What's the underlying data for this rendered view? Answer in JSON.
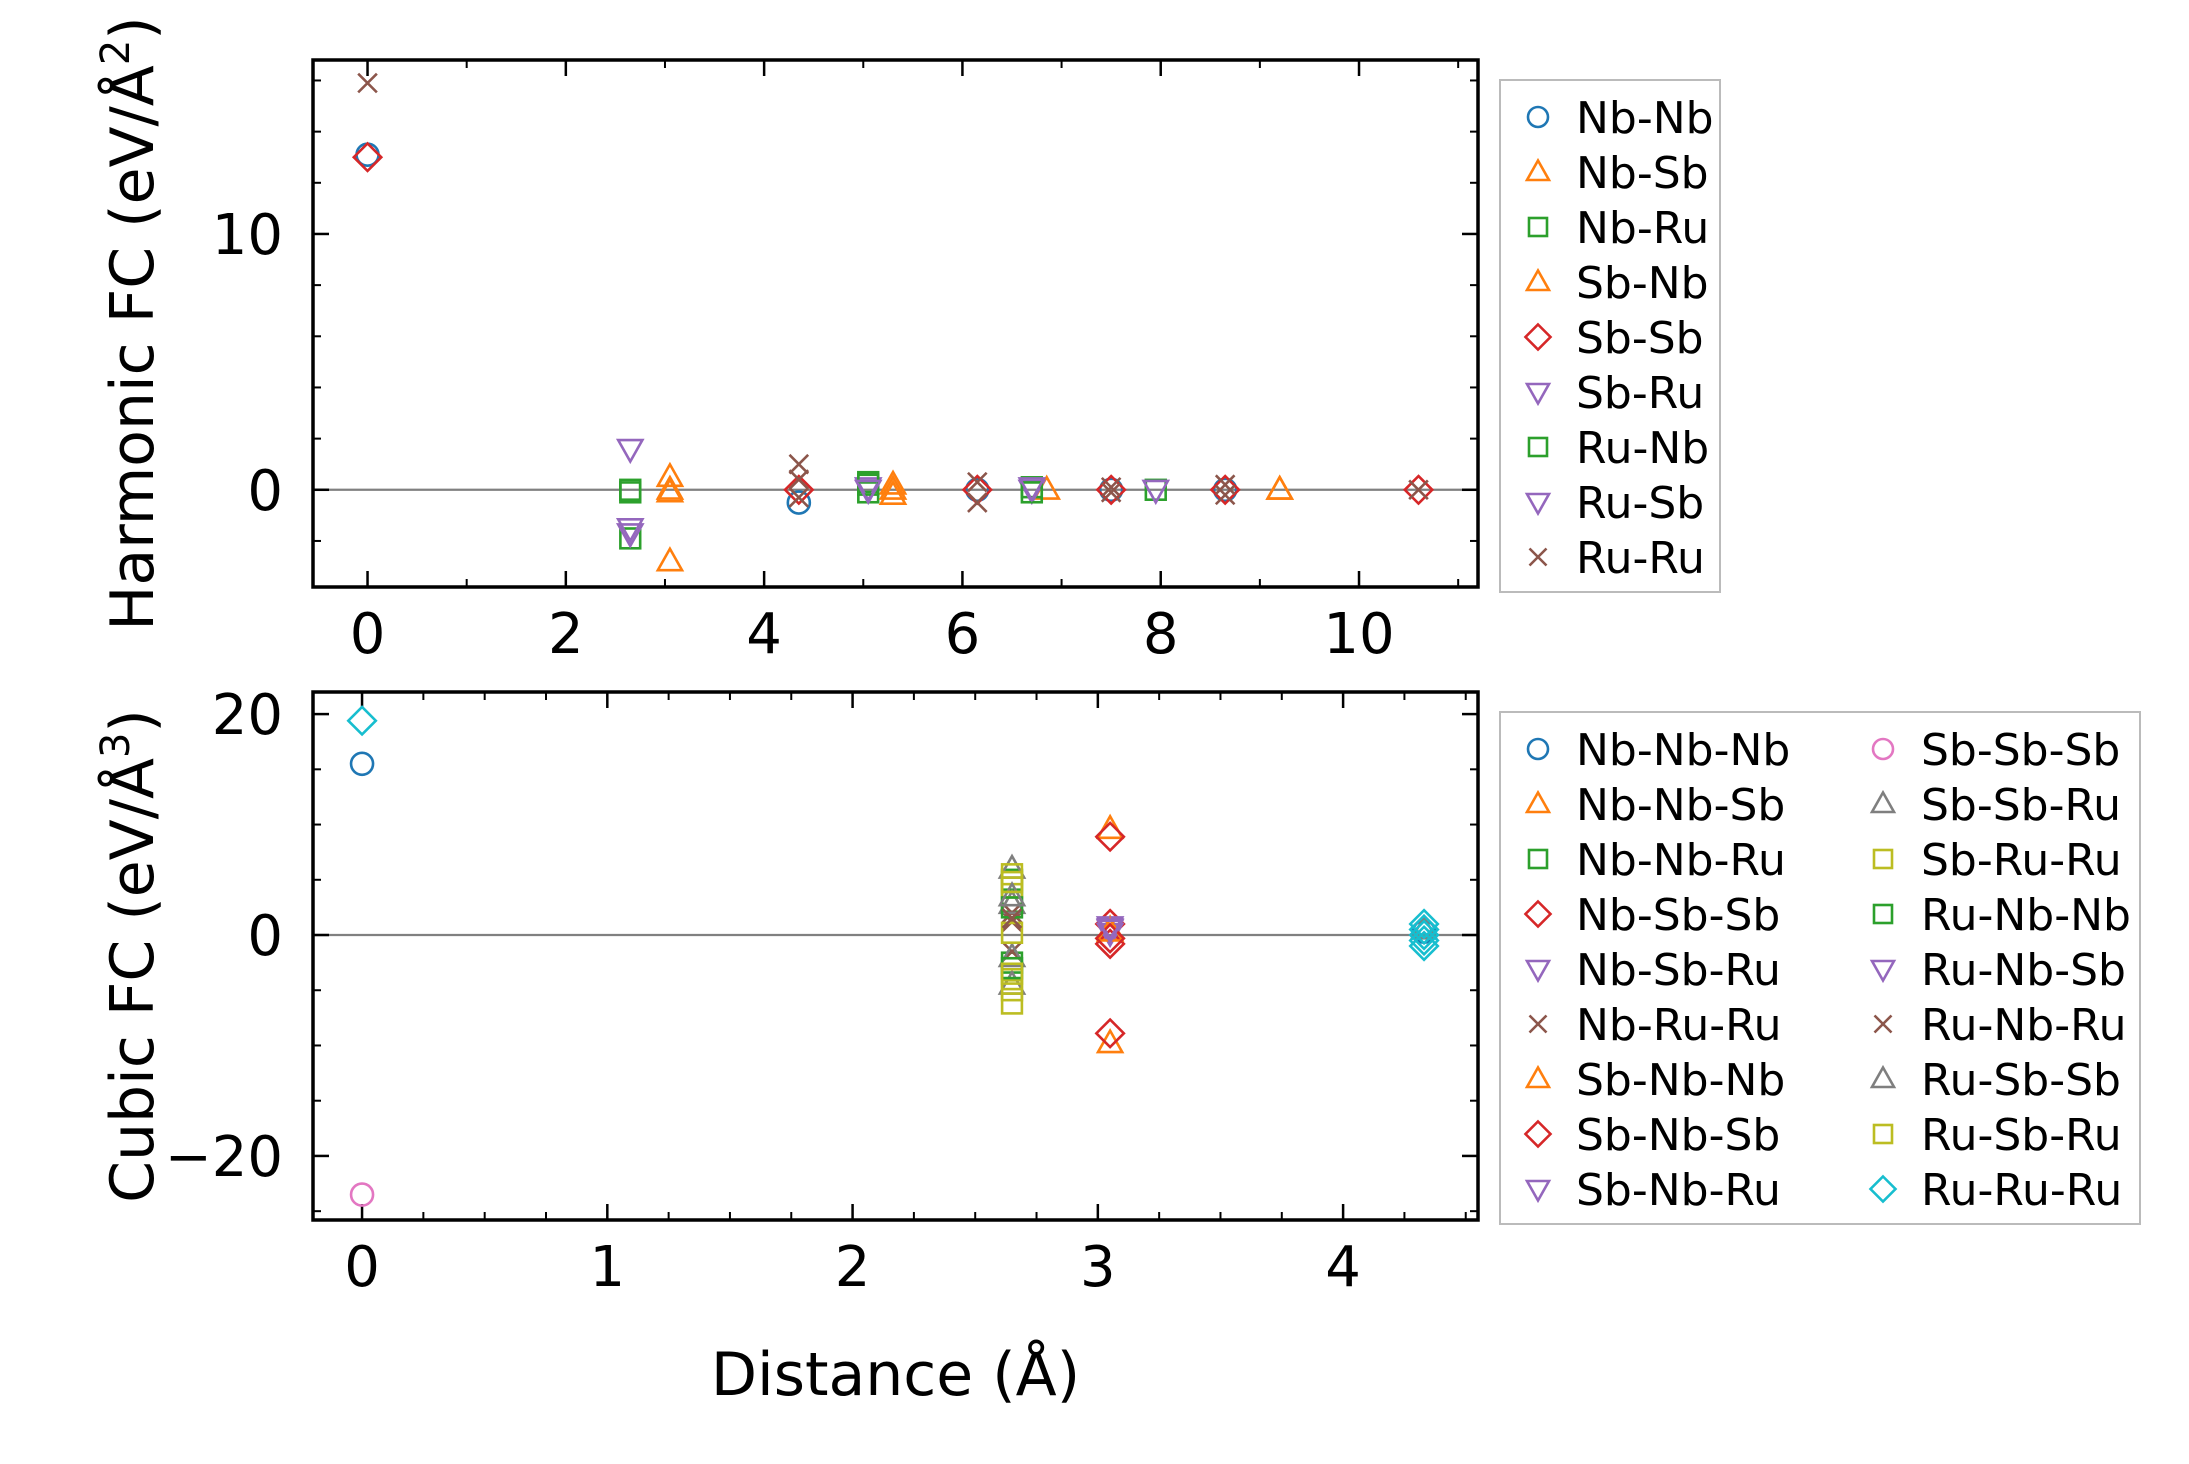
{
  "colors": {
    "Nb-Nb": "#1f77b4",
    "Nb-Sb": "#ff7f0e",
    "Nb-Ru": "#2ca02c",
    "Sb-Nb": "#ff7f0e",
    "Sb-Sb": "#d62728",
    "Sb-Ru": "#9467bd",
    "Ru-Nb": "#2ca02c",
    "Ru-Sb": "#9467bd",
    "Ru-Ru": "#8c564b",
    "Nb-Nb-Nb": "#1f77b4",
    "Nb-Nb-Sb": "#ff7f0e",
    "Nb-Nb-Ru": "#2ca02c",
    "Nb-Sb-Sb": "#d62728",
    "Nb-Sb-Ru": "#9467bd",
    "Nb-Ru-Ru": "#8c564b",
    "Sb-Nb-Nb": "#ff7f0e",
    "Sb-Nb-Sb": "#d62728",
    "Sb-Nb-Ru": "#9467bd",
    "Sb-Sb-Sb": "#e377c2",
    "Sb-Sb-Ru": "#7f7f7f",
    "Sb-Ru-Ru": "#bcbd22",
    "Ru-Nb-Nb": "#2ca02c",
    "Ru-Nb-Sb": "#9467bd",
    "Ru-Nb-Ru": "#8c564b",
    "Ru-Sb-Sb": "#7f7f7f",
    "Ru-Sb-Ru": "#bcbd22",
    "Ru-Ru-Ru": "#17becf"
  },
  "chart_data": [
    {
      "type": "scatter",
      "title": "",
      "xlabel": "",
      "ylabel": "Harmonic FC (eV/Å²)",
      "ylabel_parts": {
        "base": "Harmonic FC (eV/Å",
        "sup": "2",
        "end": ")"
      },
      "xlim": [
        -0.55,
        11.2
      ],
      "ylim": [
        -3.8,
        16.8
      ],
      "xticks": [
        0,
        2,
        4,
        6,
        8,
        10
      ],
      "xticklabels": [
        "0",
        "2",
        "4",
        "6",
        "8",
        "10"
      ],
      "yticks": [
        0,
        10
      ],
      "yticklabels": [
        "0",
        "10"
      ],
      "legend_position": "outside-right",
      "legend_columns": 1,
      "series": [
        {
          "name": "Nb-Nb",
          "marker": "circle",
          "points": [
            [
              0,
              13.1
            ],
            [
              4.35,
              -0.5
            ],
            [
              6.15,
              0
            ],
            [
              7.5,
              0
            ],
            [
              8.65,
              0
            ]
          ]
        },
        {
          "name": "Nb-Sb",
          "marker": "triangle-up",
          "points": [
            [
              3.05,
              0.5
            ],
            [
              3.05,
              -0.1
            ],
            [
              3.05,
              -2.8
            ],
            [
              5.3,
              0.2
            ],
            [
              5.3,
              -0.2
            ],
            [
              6.85,
              0
            ],
            [
              9.2,
              0
            ]
          ]
        },
        {
          "name": "Nb-Ru",
          "marker": "square",
          "points": [
            [
              2.65,
              0
            ],
            [
              2.65,
              -1.9
            ],
            [
              5.05,
              0.3
            ],
            [
              5.05,
              -0.1
            ],
            [
              6.7,
              0.1
            ],
            [
              7.95,
              0
            ]
          ]
        },
        {
          "name": "Sb-Nb",
          "marker": "triangle-up",
          "points": [
            [
              3.05,
              0
            ],
            [
              5.3,
              0
            ],
            [
              9.2,
              0
            ]
          ]
        },
        {
          "name": "Sb-Sb",
          "marker": "diamond",
          "points": [
            [
              0,
              13.0
            ],
            [
              4.35,
              0
            ],
            [
              6.15,
              0
            ],
            [
              7.5,
              0
            ],
            [
              8.65,
              0
            ],
            [
              10.6,
              0
            ]
          ]
        },
        {
          "name": "Sb-Ru",
          "marker": "triangle-down",
          "points": [
            [
              2.65,
              1.6
            ],
            [
              2.65,
              -1.7
            ],
            [
              5.05,
              0.1
            ],
            [
              6.7,
              0
            ],
            [
              7.95,
              0
            ]
          ]
        },
        {
          "name": "Ru-Nb",
          "marker": "square",
          "points": [
            [
              2.65,
              -0.1
            ],
            [
              5.05,
              0.2
            ],
            [
              6.7,
              -0.1
            ]
          ]
        },
        {
          "name": "Ru-Sb",
          "marker": "triangle-down",
          "points": [
            [
              2.65,
              -1.5
            ],
            [
              5.05,
              0
            ],
            [
              6.7,
              0.1
            ]
          ]
        },
        {
          "name": "Ru-Ru",
          "marker": "x",
          "points": [
            [
              0,
              15.9
            ],
            [
              4.35,
              1.0
            ],
            [
              4.35,
              0.4
            ],
            [
              4.35,
              -0.3
            ],
            [
              6.15,
              0.3
            ],
            [
              6.15,
              -0.5
            ],
            [
              7.5,
              0.1
            ],
            [
              7.5,
              -0.1
            ],
            [
              8.65,
              0.2
            ],
            [
              8.65,
              -0.2
            ],
            [
              10.6,
              0
            ]
          ]
        }
      ]
    },
    {
      "type": "scatter",
      "title": "",
      "xlabel": "Distance (Å)",
      "ylabel": "Cubic FC (eV/Å³)",
      "ylabel_parts": {
        "base": "Cubic FC (eV/Å",
        "sup": "3",
        "end": ")"
      },
      "xlim": [
        -0.2,
        4.55
      ],
      "ylim": [
        -25.8,
        22
      ],
      "xticks": [
        0,
        1,
        2,
        3,
        4
      ],
      "xticklabels": [
        "0",
        "1",
        "2",
        "3",
        "4"
      ],
      "yticks": [
        -20,
        0,
        20
      ],
      "yticklabels": [
        "−20",
        "0",
        "20"
      ],
      "legend_position": "outside-right",
      "legend_columns": 2,
      "series": [
        {
          "name": "Nb-Nb-Nb",
          "marker": "circle",
          "points": [
            [
              0,
              15.5
            ],
            [
              4.33,
              0.3
            ]
          ]
        },
        {
          "name": "Nb-Nb-Sb",
          "marker": "triangle-up",
          "points": [
            [
              3.05,
              9.6
            ],
            [
              3.05,
              -9.8
            ],
            [
              3.05,
              0.5
            ]
          ]
        },
        {
          "name": "Nb-Nb-Ru",
          "marker": "square",
          "points": [
            [
              2.65,
              3.0
            ],
            [
              2.65,
              -2.5
            ],
            [
              2.65,
              5.0
            ]
          ]
        },
        {
          "name": "Nb-Sb-Sb",
          "marker": "diamond",
          "points": [
            [
              3.05,
              8.9
            ],
            [
              3.05,
              -8.9
            ],
            [
              3.05,
              1.0
            ],
            [
              3.05,
              -0.8
            ]
          ]
        },
        {
          "name": "Nb-Sb-Ru",
          "marker": "triangle-down",
          "points": [
            [
              3.05,
              0.8
            ],
            [
              3.05,
              0.2
            ]
          ]
        },
        {
          "name": "Nb-Ru-Ru",
          "marker": "x",
          "points": [
            [
              2.65,
              2.0
            ],
            [
              2.65,
              1.2
            ],
            [
              2.65,
              -1.5
            ]
          ]
        },
        {
          "name": "Sb-Nb-Nb",
          "marker": "triangle-up",
          "points": [
            [
              3.05,
              0.3
            ]
          ]
        },
        {
          "name": "Sb-Nb-Sb",
          "marker": "diamond",
          "points": [
            [
              3.05,
              -0.3
            ]
          ]
        },
        {
          "name": "Sb-Nb-Ru",
          "marker": "triangle-down",
          "points": [
            [
              3.05,
              0.5
            ]
          ]
        },
        {
          "name": "Sb-Sb-Sb",
          "marker": "circle",
          "points": [
            [
              0,
              -23.5
            ]
          ]
        },
        {
          "name": "Sb-Sb-Ru",
          "marker": "triangle-up",
          "points": [
            [
              2.65,
              6.0
            ],
            [
              2.65,
              2.8
            ],
            [
              2.65,
              -2.0
            ],
            [
              2.65,
              -4.5
            ]
          ]
        },
        {
          "name": "Sb-Ru-Ru",
          "marker": "square",
          "points": [
            [
              2.65,
              5.5
            ],
            [
              2.65,
              4.3
            ],
            [
              2.65,
              0.2
            ],
            [
              2.65,
              -4.0
            ],
            [
              2.65,
              -5.0
            ],
            [
              2.65,
              -6.2
            ]
          ]
        },
        {
          "name": "Ru-Nb-Nb",
          "marker": "square",
          "points": [
            [
              2.65,
              2.5
            ],
            [
              2.65,
              -3.0
            ]
          ]
        },
        {
          "name": "Ru-Nb-Sb",
          "marker": "triangle-down",
          "points": [
            [
              3.05,
              0.6
            ]
          ]
        },
        {
          "name": "Ru-Nb-Ru",
          "marker": "x",
          "points": [
            [
              2.65,
              1.5
            ]
          ]
        },
        {
          "name": "Ru-Sb-Sb",
          "marker": "triangle-up",
          "points": [
            [
              2.65,
              3.5
            ],
            [
              4.33,
              0.5
            ]
          ]
        },
        {
          "name": "Ru-Sb-Ru",
          "marker": "square",
          "points": [
            [
              2.65,
              4.8
            ],
            [
              2.65,
              -3.5
            ]
          ]
        },
        {
          "name": "Ru-Ru-Ru",
          "marker": "diamond",
          "points": [
            [
              0,
              19.4
            ],
            [
              4.33,
              1.0
            ],
            [
              4.33,
              0.5
            ],
            [
              4.33,
              0
            ],
            [
              4.33,
              -0.5
            ],
            [
              4.33,
              -1.0
            ]
          ]
        }
      ]
    }
  ]
}
